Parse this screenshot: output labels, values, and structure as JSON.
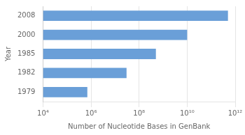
{
  "chart_data": {
    "type": "bar",
    "orientation": "horizontal",
    "log": "x",
    "xlabel": "Number of Nucleotide Bases in GenBank",
    "ylabel": "Year",
    "categories": [
      "1979",
      "1982",
      "1985",
      "2000",
      "2008"
    ],
    "values": [
      700000,
      30000000,
      500000000,
      10000000000,
      500000000000
    ],
    "color": "#6a9fd8",
    "xlim": [
      10000,
      1000000000000
    ],
    "xticks": [
      {
        "value": 10000,
        "label": "10⁴"
      },
      {
        "value": 1000000,
        "label": "10⁶"
      },
      {
        "value": 100000000,
        "label": "10⁸"
      },
      {
        "value": 10000000000,
        "label": "10¹⁰"
      },
      {
        "value": 1000000000000,
        "label": "10¹²"
      }
    ],
    "grid": true
  }
}
